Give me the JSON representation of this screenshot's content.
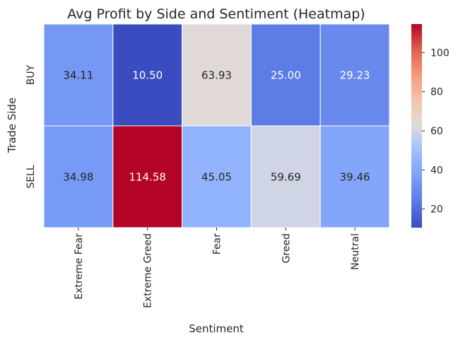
{
  "chart_data": {
    "type": "heatmap",
    "title": "Avg Profit by Side and Sentiment (Heatmap)",
    "xlabel": "Sentiment",
    "ylabel": "Trade Side",
    "x_categories": [
      "Extreme Fear",
      "Extreme Greed",
      "Fear",
      "Greed",
      "Neutral"
    ],
    "y_categories": [
      "BUY",
      "SELL"
    ],
    "values": [
      [
        34.11,
        10.5,
        63.93,
        25.0,
        29.23
      ],
      [
        34.98,
        114.58,
        45.05,
        59.69,
        39.46
      ]
    ],
    "value_format": "0.00",
    "colormap": "coolwarm",
    "colorbar": {
      "range": [
        10.5,
        114.58
      ],
      "ticks": [
        20,
        40,
        60,
        80,
        100
      ]
    },
    "colors": {
      "cold": "#3b4cc0",
      "neutral": "#dddcdc",
      "hot": "#b40426",
      "cell_border": "#ffffff"
    }
  }
}
